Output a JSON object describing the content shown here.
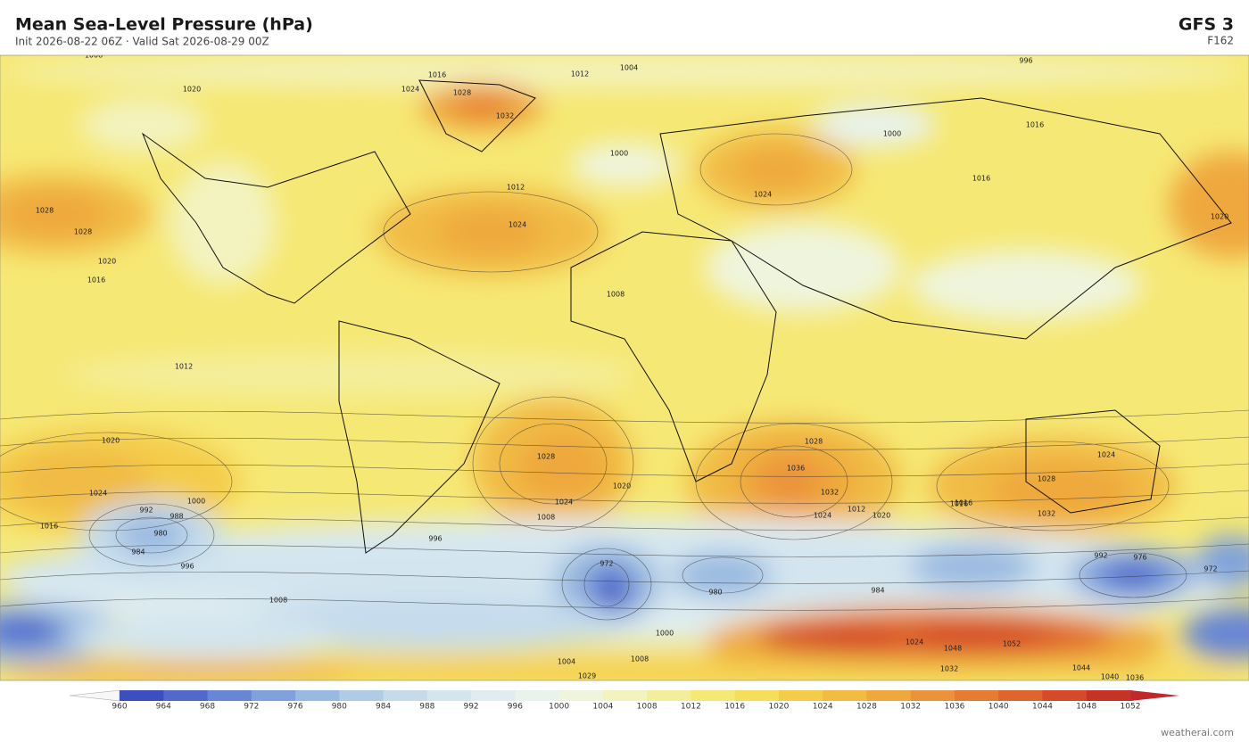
{
  "header": {
    "title": "Mean Sea-Level Pressure  (hPa)",
    "subtitle": "Init 2026-08-22 06Z   ·   Valid Sat 2026-08-29 00Z",
    "model": "GFS  3",
    "forecast_hour": "F162"
  },
  "colorbar": {
    "ticks": [
      960,
      964,
      968,
      972,
      976,
      980,
      984,
      988,
      992,
      996,
      1000,
      1004,
      1008,
      1012,
      1016,
      1020,
      1024,
      1028,
      1032,
      1036,
      1040,
      1044,
      1048,
      1052
    ],
    "colors": [
      "#3b4fc0",
      "#5069cb",
      "#6786d4",
      "#7fa2dc",
      "#98b9e0",
      "#afcbe6",
      "#c5dbec",
      "#d3e5ef",
      "#dfedf0",
      "#e8f3ec",
      "#eff5dd",
      "#f3f3bf",
      "#f4ee9c",
      "#f6e874",
      "#f6dd5c",
      "#f4cc4c",
      "#f1bb44",
      "#efa83e",
      "#eb933a",
      "#e67b34",
      "#df642e",
      "#d44a2a",
      "#c43426"
    ]
  },
  "contour_labels": [
    1008,
    1016,
    1012,
    1004,
    996,
    1020,
    1028,
    1024,
    1032,
    1000,
    1016,
    1028,
    1028,
    1020,
    1016,
    1024,
    1012,
    1000,
    1016,
    1024,
    1020,
    1008,
    1012,
    1020,
    1024,
    992,
    988,
    980,
    984,
    996,
    1016,
    1000,
    1028,
    1024,
    1020,
    1008,
    996,
    1036,
    1032,
    1028,
    1024,
    1020,
    1012,
    1016,
    1028,
    1032,
    1024,
    976,
    972,
    980,
    984,
    972,
    992,
    1004,
    1008,
    1000,
    1044,
    1048,
    1052,
    1040,
    1036,
    1024,
    1016,
    1032,
    1029,
    1008
  ],
  "watermark": "weatherai.com"
}
